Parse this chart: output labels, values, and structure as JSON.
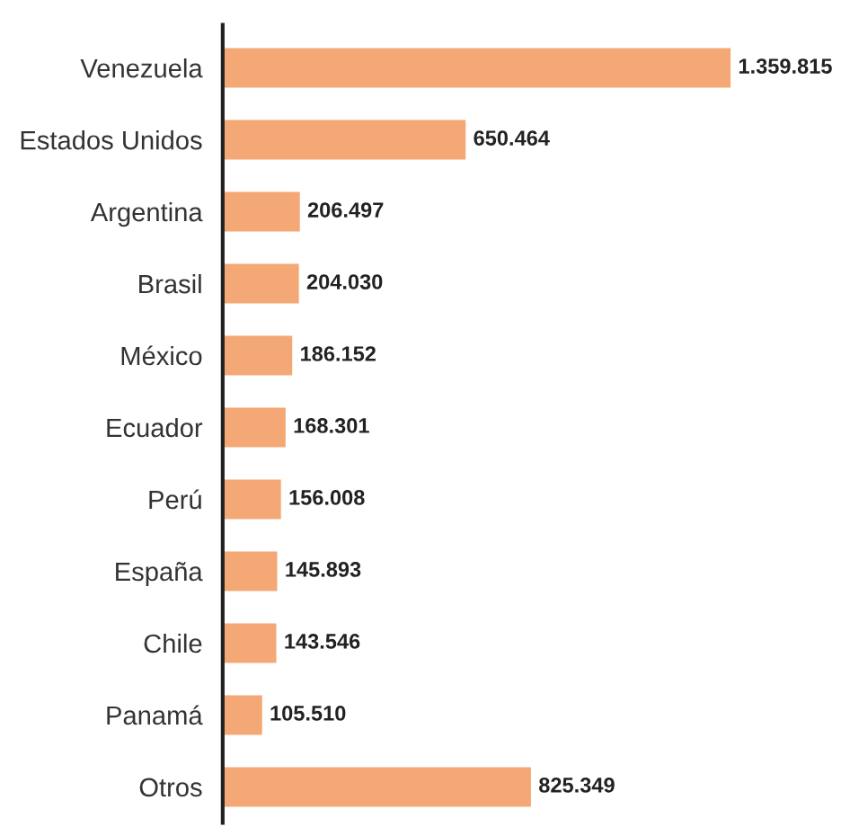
{
  "chart_data": {
    "type": "bar",
    "orientation": "horizontal",
    "categories": [
      "Venezuela",
      "Estados Unidos",
      "Argentina",
      "Brasil",
      "México",
      "Ecuador",
      "Perú",
      "España",
      "Chile",
      "Panamá",
      "Otros"
    ],
    "values": [
      1359815,
      650464,
      206497,
      204030,
      186152,
      168301,
      156008,
      145893,
      143546,
      105510,
      825349
    ],
    "value_labels": [
      "1.359.815",
      "650.464",
      "206.497",
      "204.030",
      "186.152",
      "168.301",
      "156.008",
      "145.893",
      "143.546",
      "105.510",
      "825.349"
    ],
    "color": "#f4a875",
    "grid": false,
    "legend": false
  }
}
